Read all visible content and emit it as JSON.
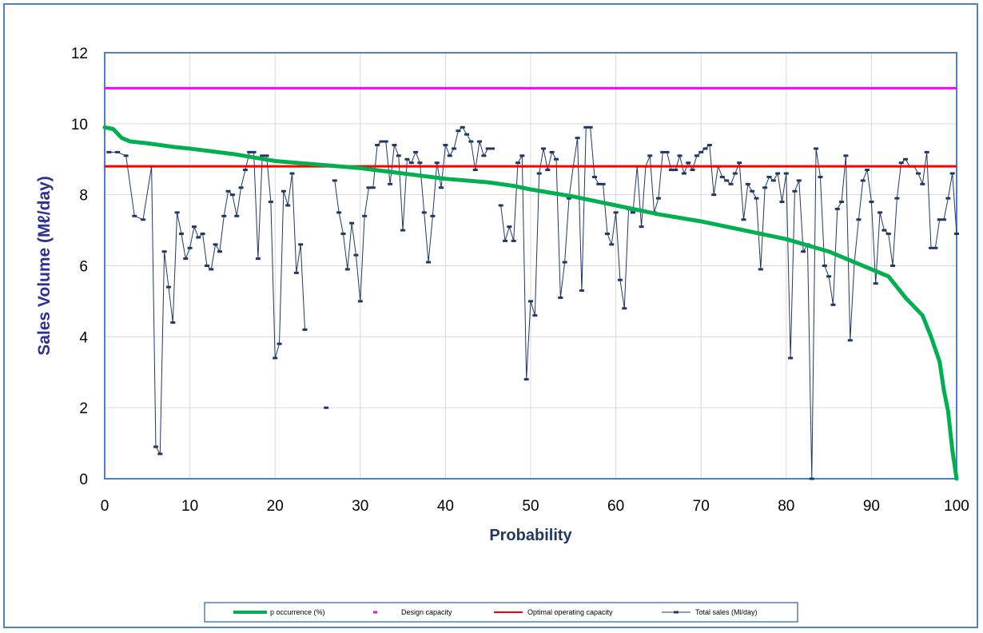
{
  "chart_data": {
    "type": "line",
    "title": "",
    "xlabel": "Probability",
    "ylabel": "Sales Volume (Mℓ/day)",
    "xlim": [
      0,
      100
    ],
    "ylim": [
      0,
      12
    ],
    "x_ticks": [
      "0",
      "10",
      "20",
      "30",
      "40",
      "50",
      "60",
      "70",
      "80",
      "90",
      "100"
    ],
    "y_ticks": [
      "0",
      "2",
      "4",
      "6",
      "8",
      "10",
      "12"
    ],
    "grid": true,
    "legend_position": "bottom",
    "series": [
      {
        "name": "p occurrence (%)",
        "color": "#00b050",
        "style": "thick-line",
        "x": [
          0,
          1,
          2,
          3,
          5,
          8,
          10,
          15,
          20,
          25,
          30,
          35,
          40,
          45,
          48,
          50,
          55,
          60,
          65,
          70,
          75,
          80,
          85,
          88,
          90,
          92,
          94,
          96,
          97,
          98,
          98.5,
          99,
          99.5,
          100
        ],
        "y": [
          9.9,
          9.85,
          9.6,
          9.5,
          9.45,
          9.35,
          9.3,
          9.15,
          8.95,
          8.85,
          8.75,
          8.6,
          8.45,
          8.35,
          8.25,
          8.15,
          7.95,
          7.7,
          7.45,
          7.25,
          7.0,
          6.75,
          6.4,
          6.1,
          5.9,
          5.7,
          5.1,
          4.6,
          4.0,
          3.3,
          2.5,
          1.9,
          0.8,
          0.0
        ]
      },
      {
        "name": "Design capacity",
        "color": "#ff00ff",
        "style": "line",
        "x": [
          0,
          100
        ],
        "y": [
          11,
          11
        ]
      },
      {
        "name": "Optimal operating capacity",
        "color": "#ff0000",
        "style": "line",
        "x": [
          0,
          100
        ],
        "y": [
          8.8,
          8.8
        ]
      },
      {
        "name": "Total sales (Ml/day)",
        "color": "#1f3864",
        "style": "thin-line-markers",
        "segments": [
          {
            "x": [
              0.5,
              1.5,
              2.5,
              3.5,
              4.5,
              5.5,
              6,
              6.5,
              7,
              7.5,
              8,
              8.5,
              9,
              9.5,
              10,
              10.5,
              11,
              11.5,
              12,
              12.5,
              13,
              13.5,
              14,
              14.5,
              15,
              15.5,
              16,
              16.5,
              17,
              17.5,
              18,
              18.5,
              19,
              19.5,
              20,
              20.5,
              21,
              21.5,
              22,
              22.5,
              23,
              23.5
            ],
            "y": [
              9.2,
              9.2,
              9.1,
              7.4,
              7.3,
              8.8,
              0.9,
              0.7,
              6.4,
              5.4,
              4.4,
              7.5,
              6.9,
              6.2,
              6.5,
              7.1,
              6.8,
              6.9,
              6.0,
              5.9,
              6.6,
              6.4,
              7.4,
              8.1,
              8.0,
              7.4,
              8.2,
              8.7,
              9.2,
              9.2,
              6.2,
              9.1,
              9.1,
              7.8,
              3.4,
              3.8,
              8.1,
              7.7,
              8.6,
              5.8,
              6.6,
              4.2
            ]
          },
          {
            "x": [
              26
            ],
            "y": [
              2.0
            ]
          },
          {
            "x": [
              27,
              27.5,
              28,
              28.5,
              29,
              29.5,
              30,
              30.5,
              31,
              31.5,
              32,
              32.5,
              33,
              33.5,
              34,
              34.5,
              35,
              35.5,
              36,
              36.5,
              37,
              37.5,
              38,
              38.5,
              39,
              39.5,
              40,
              40.5,
              41,
              41.5,
              42,
              42.5,
              43,
              43.5,
              44,
              44.5,
              45,
              45.5
            ],
            "y": [
              8.4,
              7.5,
              6.9,
              5.9,
              7.2,
              6.3,
              5.0,
              7.4,
              8.2,
              8.2,
              9.4,
              9.5,
              9.5,
              8.3,
              9.4,
              9.1,
              7.0,
              9.0,
              8.9,
              9.2,
              8.9,
              7.5,
              6.1,
              7.4,
              8.9,
              8.2,
              9.4,
              9.1,
              9.3,
              9.8,
              9.9,
              9.7,
              9.5,
              8.7,
              9.5,
              9.1,
              9.3,
              9.3
            ]
          },
          {
            "x": [
              46.5,
              47,
              47.5,
              48,
              48.5,
              49,
              49.5,
              50,
              50.5,
              51,
              51.5,
              52,
              52.5,
              53,
              53.5,
              54,
              54.5,
              55,
              55.5,
              56,
              56.5,
              57,
              57.5,
              58,
              58.5,
              59,
              59.5,
              60,
              60.5,
              61,
              61.5,
              62,
              62.5,
              63,
              63.5,
              64,
              64.5,
              65,
              65.5,
              66,
              66.5,
              67,
              67.5,
              68,
              68.5,
              69,
              69.5,
              70,
              70.5,
              71,
              71.5,
              72,
              72.5,
              73,
              73.5,
              74,
              74.5,
              75,
              75.5,
              76,
              76.5,
              77,
              77.5,
              78,
              78.5,
              79,
              79.5,
              80,
              80.5,
              81,
              81.5,
              82,
              82.5,
              83,
              83.5,
              84,
              84.5,
              85,
              85.5,
              86,
              86.5,
              87,
              87.5,
              88,
              88.5,
              89,
              89.5,
              90,
              90.5,
              91,
              91.5,
              92,
              92.5,
              93,
              93.5,
              94,
              94.5,
              95,
              95.5,
              96,
              96.5,
              97,
              97.5,
              98,
              98.5,
              99,
              99.5,
              100
            ],
            "y": [
              7.7,
              6.7,
              7.1,
              6.7,
              8.9,
              9.1,
              2.8,
              5.0,
              4.6,
              8.6,
              9.3,
              8.7,
              9.2,
              9.0,
              5.1,
              6.1,
              7.9,
              8.8,
              9.6,
              5.3,
              9.9,
              9.9,
              8.5,
              8.3,
              8.3,
              6.9,
              6.6,
              7.5,
              5.6,
              4.8,
              7.6,
              7.5,
              8.8,
              7.1,
              8.8,
              9.1,
              7.5,
              7.9,
              9.2,
              9.2,
              8.7,
              8.7,
              9.1,
              8.6,
              8.9,
              8.7,
              9.1,
              9.2,
              9.3,
              9.4,
              8.0,
              8.8,
              8.5,
              8.4,
              8.3,
              8.6,
              8.9,
              7.3,
              8.3,
              8.1,
              7.9,
              5.9,
              8.2,
              8.5,
              8.4,
              8.6,
              7.8,
              8.6,
              3.4,
              8.1,
              8.4,
              6.4,
              6.6,
              0.0,
              9.3,
              8.5,
              6.0,
              5.7,
              4.9,
              7.6,
              7.8,
              9.1,
              3.9,
              6.1,
              7.3,
              8.4,
              8.7,
              7.8,
              5.5,
              7.5,
              7.0,
              6.9,
              6.0,
              7.9,
              8.9,
              9.0,
              8.8,
              8.8,
              8.6,
              8.3,
              9.2,
              6.5,
              6.5,
              7.3,
              7.3,
              7.9,
              8.6,
              6.9
            ]
          }
        ]
      }
    ],
    "legend": [
      {
        "label": "p occurrence (%)",
        "color": "#00b050",
        "kind": "thick-line"
      },
      {
        "label": "Design capacity",
        "color": "#ff00ff",
        "kind": "marker"
      },
      {
        "label": "Optimal operating capacity",
        "color": "#ff0000",
        "kind": "line"
      },
      {
        "label": "Total sales (Ml/day)",
        "color": "#1f3864",
        "kind": "thin-line-marker"
      }
    ]
  }
}
